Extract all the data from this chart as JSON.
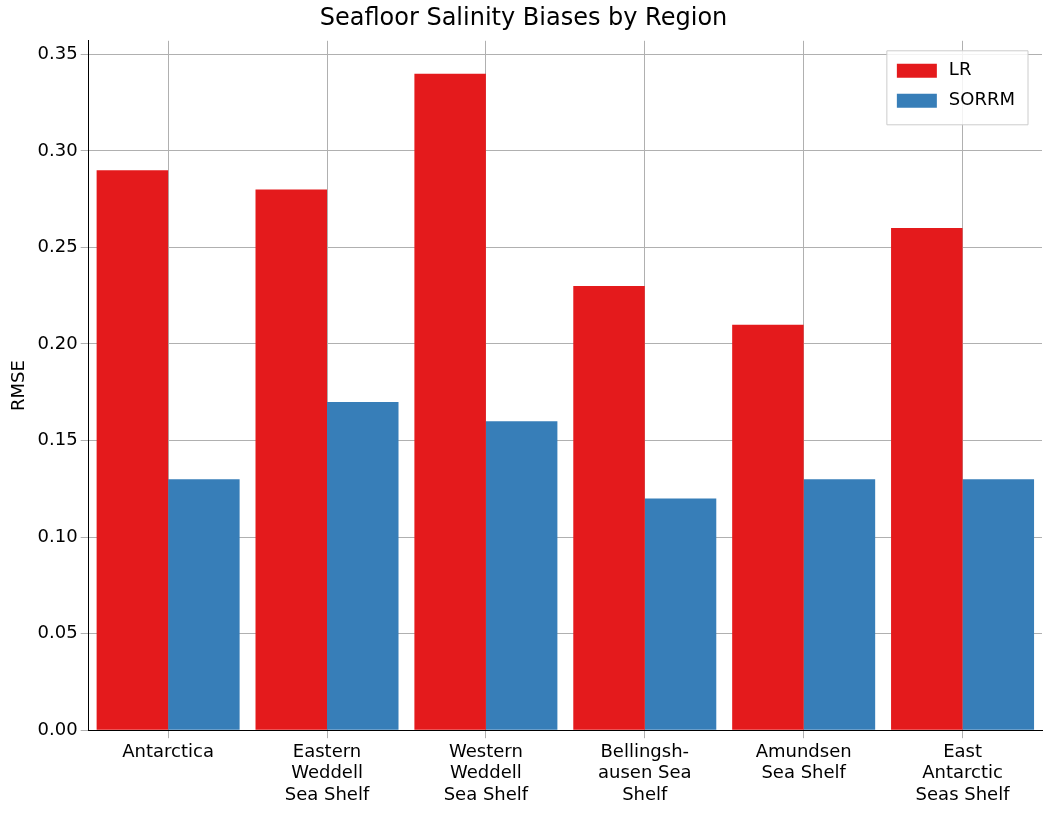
{
  "chart_data": {
    "type": "bar",
    "title": "Seafloor Salinity Biases by Region",
    "ylabel": "RMSE",
    "categories": [
      "Antarctica",
      "Eastern\nWeddell\nSea Shelf",
      "Western\nWeddell\nSea Shelf",
      "Bellingsh-\nausen Sea\nShelf",
      "Amundsen\nSea Shelf",
      "East\nAntarctic\nSeas Shelf"
    ],
    "series": [
      {
        "name": "LR",
        "color": "#e41a1c",
        "values": [
          0.29,
          0.28,
          0.34,
          0.23,
          0.21,
          0.26
        ]
      },
      {
        "name": "SORRM",
        "color": "#377eb8",
        "values": [
          0.13,
          0.17,
          0.16,
          0.12,
          0.13,
          0.13
        ]
      }
    ],
    "ylim": [
      0,
      0.357
    ],
    "yticks": [
      {
        "value": 0,
        "label": "0.00"
      },
      {
        "value": 0.05,
        "label": "0.05"
      },
      {
        "value": 0.1,
        "label": "0.10"
      },
      {
        "value": 0.15,
        "label": "0.15"
      },
      {
        "value": 0.2,
        "label": "0.20"
      },
      {
        "value": 0.25,
        "label": "0.25"
      },
      {
        "value": 0.3,
        "label": "0.30"
      },
      {
        "value": 0.35,
        "label": "0.35"
      }
    ],
    "grid": true,
    "legend": "top right"
  }
}
